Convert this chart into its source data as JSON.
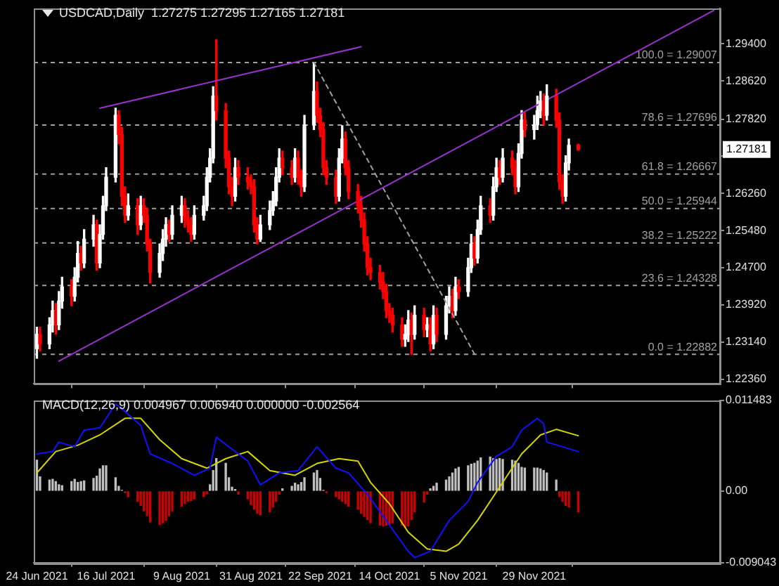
{
  "chart_data": [
    {
      "type": "candlestick",
      "title": "USDCAD,Daily  1.27275 1.27295 1.27165 1.27181",
      "tick_labels": "y",
      "legend": false,
      "grid": false,
      "xlim": [
        "2021-06-23",
        "2022-01-27"
      ],
      "xticks": [
        {
          "value": "2021-06-24",
          "label": null
        },
        {
          "value": "2021-07-16",
          "label": null
        },
        {
          "value": "2021-08-09",
          "label": null
        },
        {
          "value": "2021-08-31",
          "label": null
        },
        {
          "value": "2021-09-22",
          "label": null
        },
        {
          "value": "2021-10-14",
          "label": null
        },
        {
          "value": "2021-11-05",
          "label": null
        },
        {
          "value": "2021-11-29",
          "label": null
        }
      ],
      "ylim": [
        1.2226,
        1.3015
      ],
      "yticks": [
        {
          "value": 1.294,
          "label": "1.29400"
        },
        {
          "value": 1.2862,
          "label": "1.28620"
        },
        {
          "value": 1.2782,
          "label": "1.27820"
        },
        {
          "value": 1.2704,
          "label": null
        },
        {
          "value": 1.2626,
          "label": "1.26260"
        },
        {
          "value": 1.2548,
          "label": "1.25480"
        },
        {
          "value": 1.247,
          "label": "1.24700"
        },
        {
          "value": 1.2392,
          "label": "1.23920"
        },
        {
          "value": 1.2314,
          "label": "1.23140"
        },
        {
          "value": 1.2236,
          "label": "1.22360"
        }
      ],
      "x": [
        "2021-06-24",
        "2021-06-25",
        "2021-06-28",
        "2021-06-29",
        "2021-06-30",
        "2021-07-01",
        "2021-07-02",
        "2021-07-05",
        "2021-07-06",
        "2021-07-07",
        "2021-07-08",
        "2021-07-09",
        "2021-07-12",
        "2021-07-13",
        "2021-07-14",
        "2021-07-15",
        "2021-07-16",
        "2021-07-19",
        "2021-07-20",
        "2021-07-21",
        "2021-07-22",
        "2021-07-23",
        "2021-07-26",
        "2021-07-27",
        "2021-07-28",
        "2021-07-29",
        "2021-07-30",
        "2021-08-02",
        "2021-08-03",
        "2021-08-04",
        "2021-08-05",
        "2021-08-06",
        "2021-08-09",
        "2021-08-10",
        "2021-08-11",
        "2021-08-12",
        "2021-08-13",
        "2021-08-16",
        "2021-08-17",
        "2021-08-18",
        "2021-08-19",
        "2021-08-20",
        "2021-08-23",
        "2021-08-24",
        "2021-08-25",
        "2021-08-26",
        "2021-08-27",
        "2021-08-30",
        "2021-08-31",
        "2021-09-01",
        "2021-09-02",
        "2021-09-03",
        "2021-09-06",
        "2021-09-07",
        "2021-09-08",
        "2021-09-09",
        "2021-09-10",
        "2021-09-13",
        "2021-09-14",
        "2021-09-15",
        "2021-09-16",
        "2021-09-17",
        "2021-09-20",
        "2021-09-21",
        "2021-09-22",
        "2021-09-23",
        "2021-09-24",
        "2021-09-27",
        "2021-09-28",
        "2021-09-29",
        "2021-09-30",
        "2021-10-01",
        "2021-10-04",
        "2021-10-05",
        "2021-10-06",
        "2021-10-07",
        "2021-10-08",
        "2021-10-11",
        "2021-10-12",
        "2021-10-13",
        "2021-10-14",
        "2021-10-15",
        "2021-10-18",
        "2021-10-19",
        "2021-10-20",
        "2021-10-21",
        "2021-10-22",
        "2021-10-25",
        "2021-10-26",
        "2021-10-27",
        "2021-10-28",
        "2021-10-29",
        "2021-11-01",
        "2021-11-02",
        "2021-11-03",
        "2021-11-04",
        "2021-11-05",
        "2021-11-08",
        "2021-11-09",
        "2021-11-10",
        "2021-11-11",
        "2021-11-12",
        "2021-11-15",
        "2021-11-16",
        "2021-11-17",
        "2021-11-18",
        "2021-11-19",
        "2021-11-22",
        "2021-11-23",
        "2021-11-24",
        "2021-11-25",
        "2021-11-26",
        "2021-11-29",
        "2021-11-30",
        "2021-12-01",
        "2021-12-02",
        "2021-12-03",
        "2021-12-06",
        "2021-12-07",
        "2021-12-08",
        "2021-12-09",
        "2021-12-10",
        "2021-12-13"
      ],
      "ohlc": [
        [
          1.23,
          1.2345,
          1.228,
          1.233
        ],
        [
          1.233,
          1.2345,
          1.2295,
          1.231
        ],
        [
          1.231,
          1.2365,
          1.23,
          1.235
        ],
        [
          1.235,
          1.24,
          1.2335,
          1.238
        ],
        [
          1.238,
          1.2395,
          1.233,
          1.235
        ],
        [
          1.235,
          1.242,
          1.234,
          1.24
        ],
        [
          1.24,
          1.245,
          1.2385,
          1.243
        ],
        [
          1.243,
          1.2445,
          1.239,
          1.241
        ],
        [
          1.241,
          1.247,
          1.24,
          1.245
        ],
        [
          1.245,
          1.2525,
          1.244,
          1.25
        ],
        [
          1.25,
          1.2515,
          1.2465,
          1.248
        ],
        [
          1.248,
          1.255,
          1.247,
          1.253
        ],
        [
          1.253,
          1.258,
          1.2515,
          1.256
        ],
        [
          1.256,
          1.257,
          1.2465,
          1.248
        ],
        [
          1.248,
          1.256,
          1.247,
          1.254
        ],
        [
          1.254,
          1.262,
          1.253,
          1.26
        ],
        [
          1.26,
          1.268,
          1.259,
          1.266
        ],
        [
          1.266,
          1.2805,
          1.265,
          1.279
        ],
        [
          1.279,
          1.28,
          1.273,
          1.275
        ],
        [
          1.275,
          1.2765,
          1.26,
          1.262
        ],
        [
          1.262,
          1.264,
          1.2565,
          1.258
        ],
        [
          1.258,
          1.2625,
          1.257,
          1.26
        ],
        [
          1.26,
          1.2615,
          1.254,
          1.256
        ],
        [
          1.256,
          1.262,
          1.255,
          1.26
        ],
        [
          1.26,
          1.2615,
          1.2565,
          1.258
        ],
        [
          1.258,
          1.2595,
          1.2505,
          1.252
        ],
        [
          1.252,
          1.253,
          1.2438,
          1.246
        ],
        [
          1.246,
          1.252,
          1.245,
          1.25
        ],
        [
          1.25,
          1.255,
          1.2485,
          1.253
        ],
        [
          1.253,
          1.2575,
          1.2515,
          1.256
        ],
        [
          1.256,
          1.257,
          1.2525,
          1.254
        ],
        [
          1.254,
          1.26,
          1.253,
          1.258
        ],
        [
          1.258,
          1.262,
          1.2565,
          1.26
        ],
        [
          1.26,
          1.2615,
          1.2555,
          1.257
        ],
        [
          1.257,
          1.259,
          1.2545,
          1.256
        ],
        [
          1.256,
          1.2575,
          1.2525,
          1.254
        ],
        [
          1.254,
          1.26,
          1.253,
          1.258
        ],
        [
          1.258,
          1.262,
          1.257,
          1.26
        ],
        [
          1.26,
          1.268,
          1.259,
          1.266
        ],
        [
          1.266,
          1.272,
          1.265,
          1.27
        ],
        [
          1.27,
          1.285,
          1.269,
          1.283
        ],
        [
          1.283,
          1.2949,
          1.278,
          1.28
        ],
        [
          1.28,
          1.2815,
          1.268,
          1.27
        ],
        [
          1.27,
          1.2715,
          1.2625,
          1.264
        ],
        [
          1.264,
          1.266,
          1.26,
          1.262
        ],
        [
          1.262,
          1.27,
          1.261,
          1.268
        ],
        [
          1.268,
          1.2695,
          1.2645,
          1.266
        ],
        [
          1.266,
          1.268,
          1.2635,
          1.265
        ],
        [
          1.265,
          1.2665,
          1.2625,
          1.264
        ],
        [
          1.264,
          1.2655,
          1.2545,
          1.256
        ],
        [
          1.256,
          1.2575,
          1.252,
          1.253
        ],
        [
          1.253,
          1.258,
          1.2525,
          1.256
        ],
        [
          1.256,
          1.261,
          1.255,
          1.259
        ],
        [
          1.259,
          1.263,
          1.258,
          1.261
        ],
        [
          1.261,
          1.268,
          1.26,
          1.266
        ],
        [
          1.266,
          1.272,
          1.265,
          1.27
        ],
        [
          1.27,
          1.2715,
          1.2665,
          1.268
        ],
        [
          1.268,
          1.2695,
          1.2645,
          1.266
        ],
        [
          1.266,
          1.272,
          1.265,
          1.27
        ],
        [
          1.27,
          1.2715,
          1.2645,
          1.266
        ],
        [
          1.266,
          1.2675,
          1.262,
          1.264
        ],
        [
          1.264,
          1.279,
          1.263,
          1.277
        ],
        [
          1.277,
          1.29,
          1.276,
          1.284
        ],
        [
          1.284,
          1.286,
          1.2775,
          1.279
        ],
        [
          1.279,
          1.2805,
          1.2745,
          1.276
        ],
        [
          1.276,
          1.2775,
          1.2665,
          1.268
        ],
        [
          1.268,
          1.2695,
          1.2645,
          1.266
        ],
        [
          1.266,
          1.2675,
          1.2605,
          1.262
        ],
        [
          1.262,
          1.272,
          1.261,
          1.27
        ],
        [
          1.27,
          1.2768,
          1.269,
          1.274
        ],
        [
          1.274,
          1.2755,
          1.2665,
          1.268
        ],
        [
          1.268,
          1.2695,
          1.2615,
          1.263
        ],
        [
          1.263,
          1.2645,
          1.2585,
          1.26
        ],
        [
          1.26,
          1.262,
          1.2555,
          1.257
        ],
        [
          1.257,
          1.2585,
          1.2505,
          1.252
        ],
        [
          1.252,
          1.2535,
          1.2455,
          1.247
        ],
        [
          1.247,
          1.249,
          1.2445,
          1.246
        ],
        [
          1.246,
          1.2475,
          1.2425,
          1.244
        ],
        [
          1.244,
          1.246,
          1.2405,
          1.242
        ],
        [
          1.242,
          1.2435,
          1.2365,
          1.238
        ],
        [
          1.238,
          1.2395,
          1.2355,
          1.237
        ],
        [
          1.237,
          1.2385,
          1.2335,
          1.235
        ],
        [
          1.235,
          1.2365,
          1.2305,
          1.232
        ],
        [
          1.232,
          1.235,
          1.2305,
          1.233
        ],
        [
          1.233,
          1.238,
          1.2315,
          1.236
        ],
        [
          1.236,
          1.2375,
          1.2288,
          1.233
        ],
        [
          1.233,
          1.239,
          1.232,
          1.237
        ],
        [
          1.237,
          1.2385,
          1.2325,
          1.234
        ],
        [
          1.234,
          1.2365,
          1.2325,
          1.235
        ],
        [
          1.235,
          1.2365,
          1.2295,
          1.231
        ],
        [
          1.231,
          1.239,
          1.23,
          1.237
        ],
        [
          1.237,
          1.2385,
          1.2315,
          1.233
        ],
        [
          1.233,
          1.241,
          1.232,
          1.239
        ],
        [
          1.239,
          1.243,
          1.2375,
          1.241
        ],
        [
          1.241,
          1.2425,
          1.2365,
          1.238
        ],
        [
          1.238,
          1.245,
          1.237,
          1.243
        ],
        [
          1.243,
          1.2445,
          1.2405,
          1.242
        ],
        [
          1.242,
          1.249,
          1.241,
          1.247
        ],
        [
          1.247,
          1.254,
          1.246,
          1.252
        ],
        [
          1.252,
          1.2535,
          1.2475,
          1.249
        ],
        [
          1.249,
          1.257,
          1.248,
          1.255
        ],
        [
          1.255,
          1.262,
          1.254,
          1.26
        ],
        [
          1.26,
          1.2615,
          1.2565,
          1.258
        ],
        [
          1.258,
          1.266,
          1.257,
          1.264
        ],
        [
          1.264,
          1.27,
          1.263,
          1.268
        ],
        [
          1.268,
          1.2695,
          1.2645,
          1.266
        ],
        [
          1.266,
          1.272,
          1.265,
          1.27
        ],
        [
          1.27,
          1.2715,
          1.2665,
          1.268
        ],
        [
          1.268,
          1.2695,
          1.2625,
          1.264
        ],
        [
          1.264,
          1.273,
          1.263,
          1.271
        ],
        [
          1.271,
          1.28,
          1.27,
          1.278
        ],
        [
          1.278,
          1.2795,
          1.2745,
          1.276
        ],
        [
          1.276,
          1.279,
          1.274,
          1.277
        ],
        [
          1.277,
          1.283,
          1.276,
          1.28
        ],
        [
          1.28,
          1.284,
          1.2785,
          1.282
        ],
        [
          1.282,
          1.2835,
          1.277,
          1.279
        ],
        [
          1.279,
          1.2854,
          1.278,
          1.283
        ],
        [
          1.283,
          1.2845,
          1.2765,
          1.278
        ],
        [
          1.278,
          1.2795,
          1.2635,
          1.265
        ],
        [
          1.265,
          1.2665,
          1.2605,
          1.262
        ],
        [
          1.262,
          1.2705,
          1.261,
          1.269
        ],
        [
          1.269,
          1.274,
          1.2675,
          1.2727
        ],
        [
          1.27275,
          1.27295,
          1.27165,
          1.27181
        ]
      ],
      "colors": [
        "#ffffff",
        "#ff0000",
        "#ffffff",
        "#ffffff",
        "#ff0000",
        "#ffffff",
        "#ffffff",
        "#ff0000",
        "#ffffff",
        "#ffffff",
        "#ff0000",
        "#ffffff",
        "#ffffff",
        "#ff0000",
        "#ffffff",
        "#ffffff",
        "#ffffff",
        "#ffffff",
        "#ff0000",
        "#ff0000",
        "#ff0000",
        "#ffffff",
        "#ff0000",
        "#ffffff",
        "#ff0000",
        "#ff0000",
        "#ff0000",
        "#ffffff",
        "#ffffff",
        "#ffffff",
        "#ff0000",
        "#ffffff",
        "#ffffff",
        "#ff0000",
        "#ff0000",
        "#ff0000",
        "#ffffff",
        "#ffffff",
        "#ffffff",
        "#ffffff",
        "#ffffff",
        "#ff0000",
        "#ff0000",
        "#ff0000",
        "#ff0000",
        "#ffffff",
        "#ff0000",
        "#ff0000",
        "#ff0000",
        "#ff0000",
        "#ff0000",
        "#ffffff",
        "#ffffff",
        "#ffffff",
        "#ffffff",
        "#ffffff",
        "#ff0000",
        "#ff0000",
        "#ffffff",
        "#ff0000",
        "#ff0000",
        "#ffffff",
        "#ffffff",
        "#ff0000",
        "#ff0000",
        "#ff0000",
        "#ff0000",
        "#ff0000",
        "#ffffff",
        "#ffffff",
        "#ff0000",
        "#ff0000",
        "#ff0000",
        "#ff0000",
        "#ff0000",
        "#ff0000",
        "#ff0000",
        "#ff0000",
        "#ff0000",
        "#ff0000",
        "#ff0000",
        "#ff0000",
        "#ff0000",
        "#ffffff",
        "#ffffff",
        "#ff0000",
        "#ffffff",
        "#ff0000",
        "#ffffff",
        "#ff0000",
        "#ffffff",
        "#ff0000",
        "#ffffff",
        "#ffffff",
        "#ff0000",
        "#ffffff",
        "#ff0000",
        "#ffffff",
        "#ffffff",
        "#ff0000",
        "#ffffff",
        "#ffffff",
        "#ff0000",
        "#ffffff",
        "#ffffff",
        "#ff0000",
        "#ffffff",
        "#ff0000",
        "#ff0000",
        "#ffffff",
        "#ffffff",
        "#ff0000",
        "#ffffff",
        "#ffffff",
        "#ffffff",
        "#ff0000",
        "#ffffff",
        "#ff0000",
        "#ff0000",
        "#ff0000",
        "#ffffff",
        "#ffffff",
        "#ff0000"
      ],
      "series": [
        {
          "type": "line",
          "color": "#9932cc",
          "x": [
            "2021-07-14",
            "2021-10-05"
          ],
          "values": [
            1.2805,
            1.2934
          ]
        },
        {
          "type": "line",
          "color": "#9932cc",
          "x": [
            "2021-07-01",
            "2022-01-25"
          ],
          "values": [
            1.2274,
            1.301
          ]
        },
        {
          "type": "line",
          "color": "#a0a0a0",
          "line_style": "dashed",
          "x": [
            "2021-09-20",
            "2021-11-10"
          ],
          "values": [
            1.2901,
            1.2289
          ]
        }
      ],
      "ref_lines": [
        {
          "axis": "y",
          "value": 1.29007,
          "label": "100.0 = 1.29007",
          "color": "#a0a0a0",
          "line_style": "dashed"
        },
        {
          "axis": "y",
          "value": 1.27696,
          "label": "78.6 = 1.27696",
          "color": "#a0a0a0",
          "line_style": "dashed"
        },
        {
          "axis": "y",
          "value": 1.26667,
          "label": "61.8 = 1.26667",
          "color": "#a0a0a0",
          "line_style": "dashed"
        },
        {
          "axis": "y",
          "value": 1.25944,
          "label": "50.0 = 1.25944",
          "color": "#a0a0a0",
          "line_style": "dashed"
        },
        {
          "axis": "y",
          "value": 1.25222,
          "label": "38.2 = 1.25222",
          "color": "#a0a0a0",
          "line_style": "dashed"
        },
        {
          "axis": "y",
          "value": 1.24328,
          "label": "23.6 = 1.24328",
          "color": "#a0a0a0",
          "line_style": "dashed"
        },
        {
          "axis": "y",
          "value": 1.22882,
          "label": "0.0 = 1.22882",
          "color": "#a0a0a0",
          "line_style": "dashed"
        }
      ],
      "annotations": [
        "1.27181"
      ]
    },
    {
      "type": "bar",
      "title": "MACD(12,26,9) 0.004967 0.006940 0.000000 -0.002564",
      "legend": false,
      "grid": false,
      "xlim": [
        "2021-06-23",
        "2022-01-27"
      ],
      "xticks": [
        {
          "value": "2021-06-24",
          "label": "24 Jun 2021"
        },
        {
          "value": "2021-07-16",
          "label": "16 Jul 2021"
        },
        {
          "value": "2021-08-09",
          "label": "9 Aug 2021"
        },
        {
          "value": "2021-08-31",
          "label": "31 Aug 2021"
        },
        {
          "value": "2021-09-22",
          "label": "22 Sep 2021"
        },
        {
          "value": "2021-10-14",
          "label": "14 Oct 2021"
        },
        {
          "value": "2021-11-05",
          "label": "5 Nov 2021"
        },
        {
          "value": "2021-11-29",
          "label": "29 Nov 2021"
        }
      ],
      "ylim": [
        -0.009043,
        0.011483
      ],
      "yticks": [
        0.011483,
        {
          "value": 0,
          "label": "0.00"
        },
        -0.009043
      ],
      "x": [
        "2021-06-24",
        "2021-06-25",
        "2021-06-28",
        "2021-06-29",
        "2021-06-30",
        "2021-07-01",
        "2021-07-02",
        "2021-07-05",
        "2021-07-06",
        "2021-07-07",
        "2021-07-08",
        "2021-07-09",
        "2021-07-12",
        "2021-07-13",
        "2021-07-14",
        "2021-07-15",
        "2021-07-16",
        "2021-07-19",
        "2021-07-20",
        "2021-07-21",
        "2021-07-22",
        "2021-07-23",
        "2021-07-26",
        "2021-07-27",
        "2021-07-28",
        "2021-07-29",
        "2021-07-30",
        "2021-08-02",
        "2021-08-03",
        "2021-08-04",
        "2021-08-05",
        "2021-08-06",
        "2021-08-09",
        "2021-08-10",
        "2021-08-11",
        "2021-08-12",
        "2021-08-13",
        "2021-08-16",
        "2021-08-17",
        "2021-08-18",
        "2021-08-19",
        "2021-08-20",
        "2021-08-23",
        "2021-08-24",
        "2021-08-25",
        "2021-08-26",
        "2021-08-27",
        "2021-08-30",
        "2021-08-31",
        "2021-09-01",
        "2021-09-02",
        "2021-09-03",
        "2021-09-06",
        "2021-09-07",
        "2021-09-08",
        "2021-09-09",
        "2021-09-10",
        "2021-09-13",
        "2021-09-14",
        "2021-09-15",
        "2021-09-16",
        "2021-09-17",
        "2021-09-20",
        "2021-09-21",
        "2021-09-22",
        "2021-09-23",
        "2021-09-24",
        "2021-09-27",
        "2021-09-28",
        "2021-09-29",
        "2021-09-30",
        "2021-10-01",
        "2021-10-04",
        "2021-10-05",
        "2021-10-06",
        "2021-10-07",
        "2021-10-08",
        "2021-10-11",
        "2021-10-12",
        "2021-10-13",
        "2021-10-14",
        "2021-10-15",
        "2021-10-18",
        "2021-10-19",
        "2021-10-20",
        "2021-10-21",
        "2021-10-22",
        "2021-10-25",
        "2021-10-26",
        "2021-10-27",
        "2021-10-28",
        "2021-10-29",
        "2021-11-01",
        "2021-11-02",
        "2021-11-03",
        "2021-11-04",
        "2021-11-05",
        "2021-11-08",
        "2021-11-09",
        "2021-11-10",
        "2021-11-11",
        "2021-11-12",
        "2021-11-15",
        "2021-11-16",
        "2021-11-17",
        "2021-11-18",
        "2021-11-19",
        "2021-11-22",
        "2021-11-23",
        "2021-11-24",
        "2021-11-25",
        "2021-11-26",
        "2021-11-29",
        "2021-11-30",
        "2021-12-01",
        "2021-12-02",
        "2021-12-03",
        "2021-12-06",
        "2021-12-07",
        "2021-12-08",
        "2021-12-09",
        "2021-12-10",
        "2021-12-13"
      ],
      "series": [
        {
          "type": "bar",
          "values": [
            0.0039,
            0.0018,
            0.0014,
            0.0015,
            0.0012,
            0.0008,
            0.0007,
            0.0012,
            0.0015,
            0.0011,
            0.0012,
            0.0013,
            0.0016,
            0.0019,
            0.0028,
            0.0032,
            0.0032,
            0.0017,
            0.0006,
            0.0001,
            -0.0002,
            -0.0007,
            -0.0013,
            -0.0018,
            -0.0025,
            -0.0031,
            -0.0039,
            -0.0042,
            -0.004,
            -0.0037,
            -0.0031,
            -0.0025,
            -0.0019,
            -0.0016,
            -0.0013,
            -0.0012,
            -0.001,
            -0.0007,
            -0.0003,
            0.0008,
            0.0026,
            0.0041,
            0.0035,
            0.0017,
            0.0005,
            0.0002,
            -0.0004,
            -0.001,
            -0.0017,
            -0.0023,
            -0.0028,
            -0.003,
            -0.0026,
            -0.002,
            -0.0013,
            -0.0004,
            0.0003,
            0.0006,
            0.001,
            0.0008,
            0.0011,
            0.0017,
            0.0023,
            0.0026,
            0.0016,
            0.0001,
            -0.0002,
            -0.0007,
            -0.001,
            -0.0013,
            -0.0016,
            -0.0019,
            -0.0023,
            -0.0028,
            -0.0032,
            -0.0036,
            -0.004,
            -0.0043,
            -0.0044,
            -0.0043,
            -0.0042,
            -0.004,
            -0.0043,
            -0.0046,
            -0.0044,
            -0.0036,
            -0.0026,
            -0.0014,
            -0.0004,
            0.0003,
            0.0006,
            0.001,
            0.0014,
            0.0018,
            0.0023,
            0.0028,
            0.003,
            0.0032,
            0.0034,
            0.0035,
            0.0038,
            0.0042,
            0.0043,
            0.0041,
            0.004,
            0.0041,
            0.004,
            0.0039,
            0.0038,
            0.0035,
            0.003,
            0.0029,
            0.0029,
            0.0029,
            0.0028,
            0.0026,
            0.0023,
            0.0014,
            -0.0007,
            -0.0013,
            -0.0018,
            -0.002,
            -0.0026
          ],
          "colors": [
            "#c0c0c0",
            "#c0c0c0",
            "#c0c0c0",
            "#c0c0c0",
            "#c0c0c0",
            "#c0c0c0",
            "#c0c0c0",
            "#c0c0c0",
            "#c0c0c0",
            "#c0c0c0",
            "#c0c0c0",
            "#c0c0c0",
            "#c0c0c0",
            "#c0c0c0",
            "#c0c0c0",
            "#c0c0c0",
            "#c0c0c0",
            "#c0c0c0",
            "#c0c0c0",
            "#c0c0c0",
            "#cc0000",
            "#cc0000",
            "#cc0000",
            "#cc0000",
            "#cc0000",
            "#cc0000",
            "#cc0000",
            "#cc0000",
            "#cc0000",
            "#cc0000",
            "#cc0000",
            "#cc0000",
            "#cc0000",
            "#cc0000",
            "#cc0000",
            "#cc0000",
            "#cc0000",
            "#cc0000",
            "#cc0000",
            "#c0c0c0",
            "#c0c0c0",
            "#c0c0c0",
            "#c0c0c0",
            "#c0c0c0",
            "#c0c0c0",
            "#c0c0c0",
            "#cc0000",
            "#cc0000",
            "#cc0000",
            "#cc0000",
            "#cc0000",
            "#cc0000",
            "#cc0000",
            "#cc0000",
            "#cc0000",
            "#cc0000",
            "#c0c0c0",
            "#c0c0c0",
            "#c0c0c0",
            "#c0c0c0",
            "#c0c0c0",
            "#c0c0c0",
            "#c0c0c0",
            "#c0c0c0",
            "#c0c0c0",
            "#c0c0c0",
            "#cc0000",
            "#cc0000",
            "#cc0000",
            "#cc0000",
            "#cc0000",
            "#cc0000",
            "#cc0000",
            "#cc0000",
            "#cc0000",
            "#cc0000",
            "#cc0000",
            "#cc0000",
            "#cc0000",
            "#cc0000",
            "#cc0000",
            "#cc0000",
            "#cc0000",
            "#cc0000",
            "#cc0000",
            "#cc0000",
            "#cc0000",
            "#cc0000",
            "#cc0000",
            "#c0c0c0",
            "#c0c0c0",
            "#c0c0c0",
            "#c0c0c0",
            "#c0c0c0",
            "#c0c0c0",
            "#c0c0c0",
            "#c0c0c0",
            "#c0c0c0",
            "#c0c0c0",
            "#c0c0c0",
            "#c0c0c0",
            "#c0c0c0",
            "#c0c0c0",
            "#c0c0c0",
            "#c0c0c0",
            "#c0c0c0",
            "#c0c0c0",
            "#c0c0c0",
            "#c0c0c0",
            "#c0c0c0",
            "#c0c0c0",
            "#c0c0c0",
            "#c0c0c0",
            "#c0c0c0",
            "#c0c0c0",
            "#c0c0c0",
            "#c0c0c0",
            "#c0c0c0",
            "#cc0000",
            "#cc0000",
            "#cc0000",
            "#cc0000",
            "#cc0000"
          ]
        },
        {
          "type": "line",
          "color": "#1010ff",
          "x": [
            "2021-06-24",
            "2021-06-29",
            "2021-07-01",
            "2021-07-06",
            "2021-07-09",
            "2021-07-14",
            "2021-07-19",
            "2021-07-21",
            "2021-07-27",
            "2021-07-30",
            "2021-08-06",
            "2021-08-13",
            "2021-08-18",
            "2021-08-20",
            "2021-08-25",
            "2021-08-30",
            "2021-09-03",
            "2021-09-09",
            "2021-09-15",
            "2021-09-21",
            "2021-09-27",
            "2021-10-01",
            "2021-10-07",
            "2021-10-14",
            "2021-10-20",
            "2021-10-22",
            "2021-10-27",
            "2021-11-02",
            "2021-11-08",
            "2021-11-11",
            "2021-11-17",
            "2021-11-22",
            "2021-11-25",
            "2021-11-30",
            "2021-12-02",
            "2021-12-03",
            "2021-12-08",
            "2021-12-13"
          ],
          "values": [
            0.0047,
            0.005,
            0.0062,
            0.0056,
            0.0077,
            0.008,
            0.011,
            0.0104,
            0.0083,
            0.0047,
            0.0035,
            0.002,
            0.0029,
            0.0068,
            0.0053,
            0.0038,
            0.0008,
            0.0023,
            0.0026,
            0.0056,
            0.0029,
            0.0023,
            -0.0004,
            -0.0043,
            -0.0076,
            -0.0084,
            -0.0076,
            -0.0037,
            -0.0013,
            0.0011,
            0.0044,
            0.0056,
            0.0077,
            0.0092,
            0.0085,
            0.0062,
            0.0056,
            0.005
          ]
        },
        {
          "type": "line",
          "color": "#d4d400",
          "x": [
            "2021-06-24",
            "2021-06-30",
            "2021-07-07",
            "2021-07-14",
            "2021-07-22",
            "2021-07-27",
            "2021-08-02",
            "2021-08-09",
            "2021-08-17",
            "2021-08-23",
            "2021-08-30",
            "2021-09-06",
            "2021-09-14",
            "2021-09-21",
            "2021-09-28",
            "2021-10-04",
            "2021-10-08",
            "2021-10-14",
            "2021-10-20",
            "2021-10-26",
            "2021-11-01",
            "2021-11-05",
            "2021-11-11",
            "2021-11-18",
            "2021-11-25",
            "2021-12-01",
            "2021-12-06",
            "2021-12-13"
          ],
          "values": [
            0.0023,
            0.005,
            0.0058,
            0.0071,
            0.0092,
            0.0092,
            0.0065,
            0.0041,
            0.0029,
            0.0041,
            0.005,
            0.0026,
            0.002,
            0.0035,
            0.0041,
            0.0038,
            0.0011,
            -0.0016,
            -0.0052,
            -0.0073,
            -0.0076,
            -0.0067,
            -0.0037,
            0.0005,
            0.0047,
            0.0071,
            0.0078,
            0.007
          ]
        }
      ]
    }
  ]
}
